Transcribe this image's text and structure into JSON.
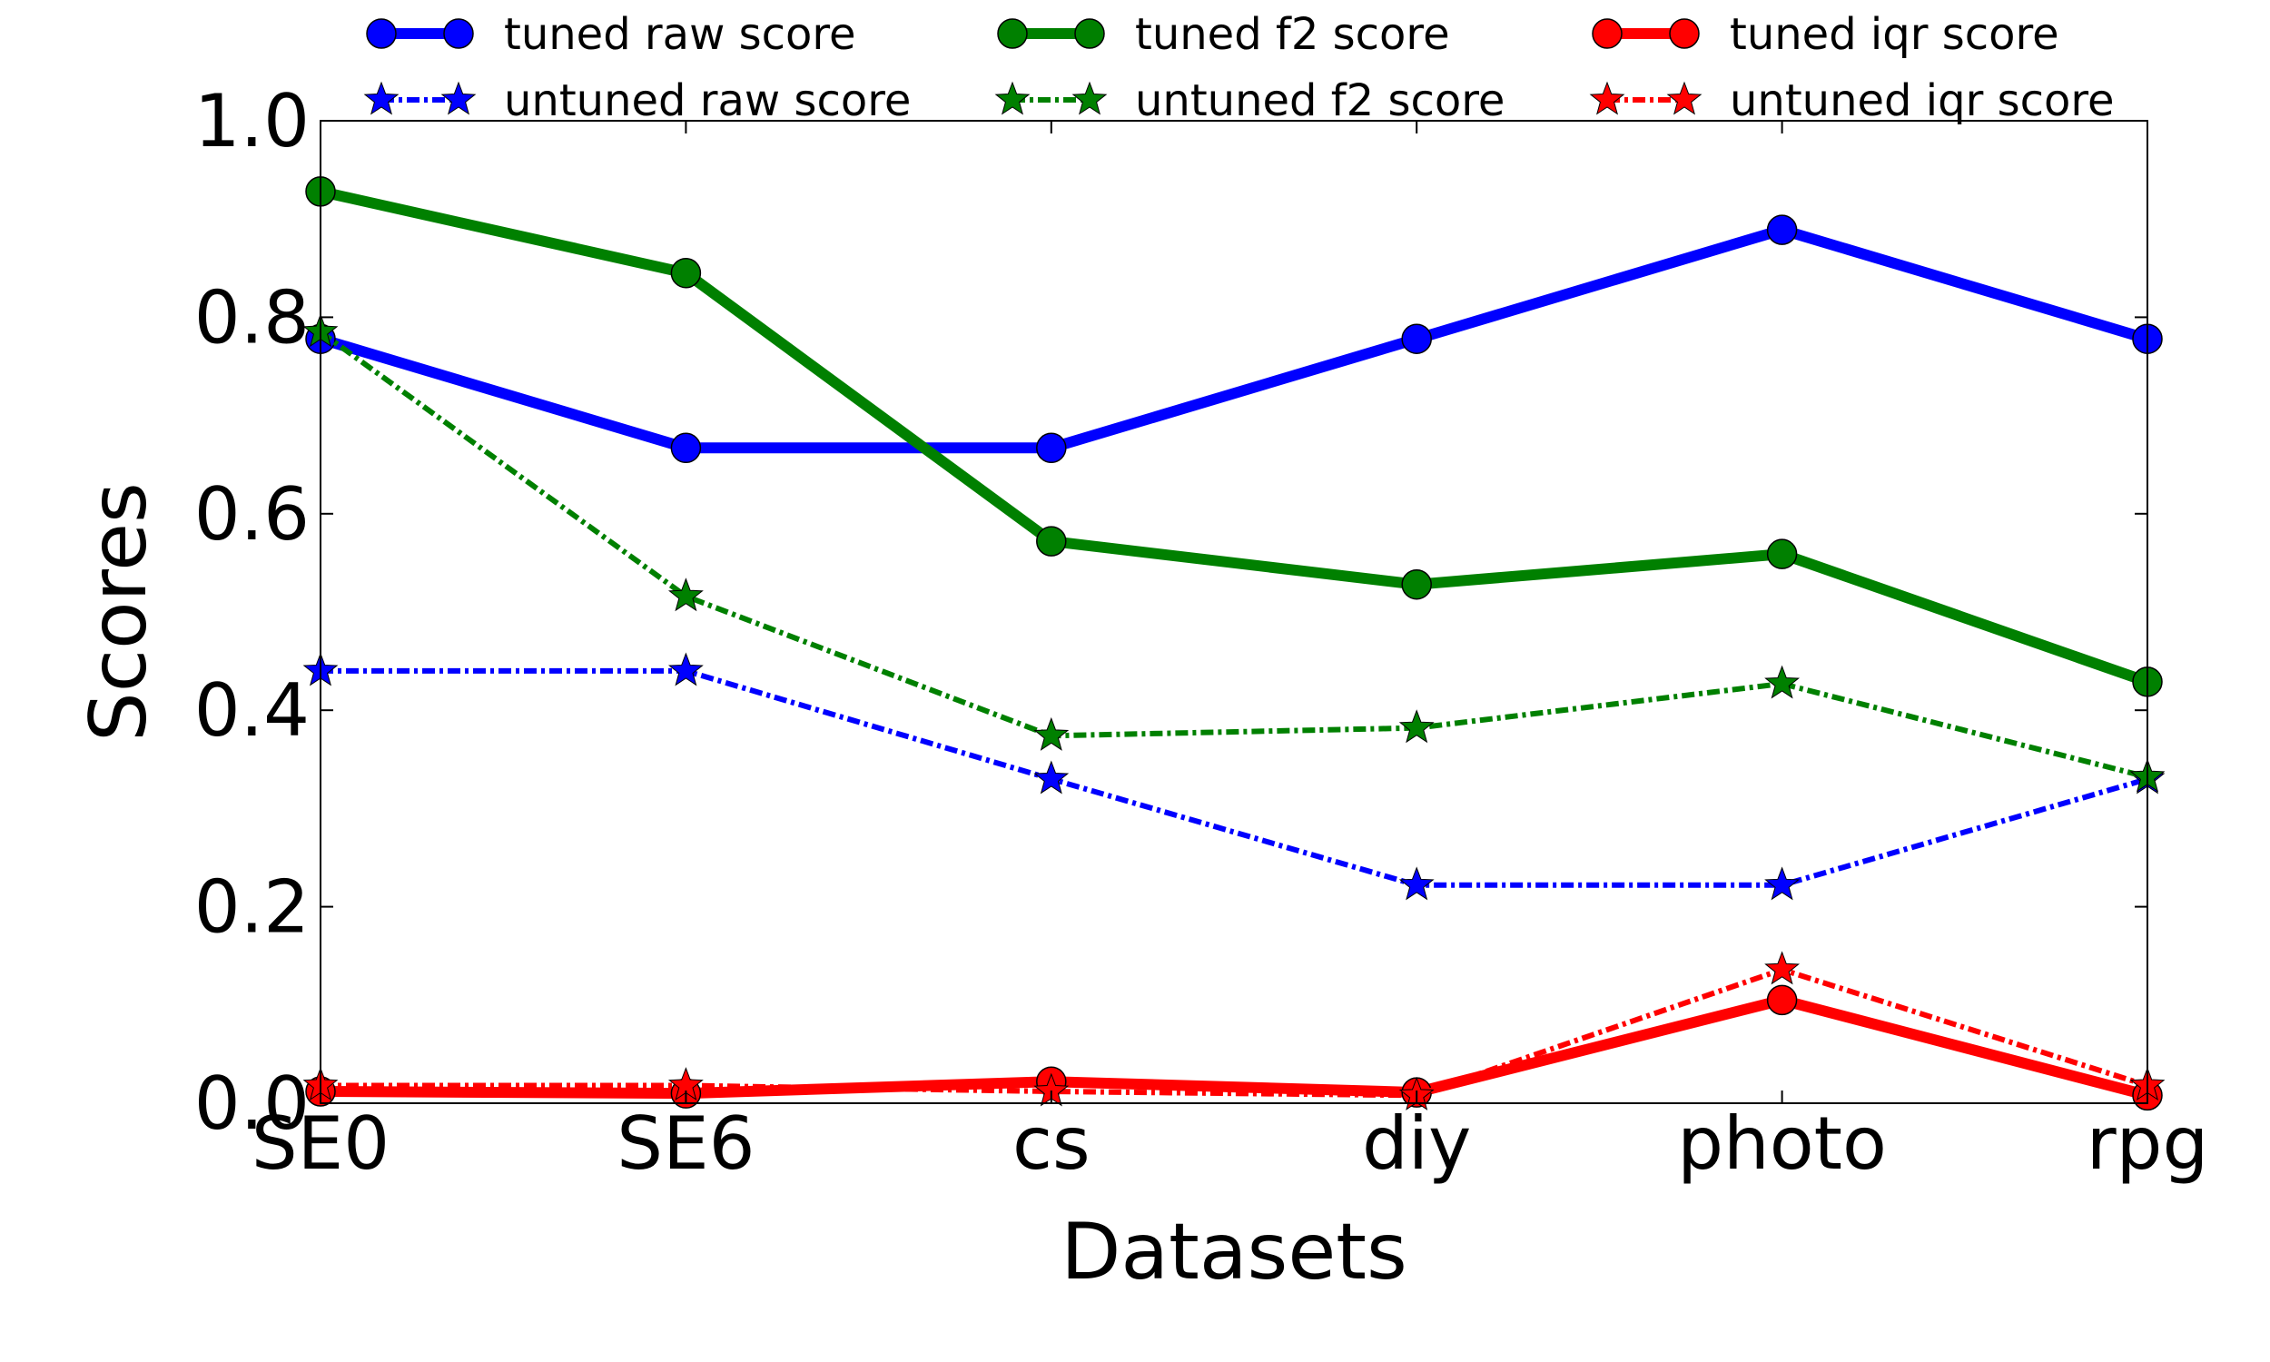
{
  "chart_data": {
    "type": "line",
    "xlabel": "Datasets",
    "ylabel": "Scores",
    "categories": [
      "SE0",
      "SE6",
      "cs",
      "diy",
      "photo",
      "rpg"
    ],
    "ylim": [
      0.0,
      1.0
    ],
    "yticks": [
      "0.0",
      "0.2",
      "0.4",
      "0.6",
      "0.8",
      "1.0"
    ],
    "grid": false,
    "legend_placement": "top, above plot, 3 columns",
    "series": [
      {
        "name": "tuned raw score",
        "color": "#0000ff",
        "style": "solid",
        "marker": "circle",
        "values": [
          0.778,
          0.667,
          0.667,
          0.778,
          0.889,
          0.778
        ]
      },
      {
        "name": "untuned raw score",
        "color": "#0000ff",
        "style": "dashdot",
        "marker": "star",
        "values": [
          0.44,
          0.44,
          0.33,
          0.222,
          0.222,
          0.33
        ]
      },
      {
        "name": "tuned f2 score",
        "color": "#008000",
        "style": "solid",
        "marker": "circle",
        "values": [
          0.928,
          0.845,
          0.572,
          0.528,
          0.559,
          0.429
        ]
      },
      {
        "name": "untuned f2 score",
        "color": "#008000",
        "style": "dashdot",
        "marker": "star",
        "values": [
          0.785,
          0.516,
          0.374,
          0.382,
          0.427,
          0.332
        ]
      },
      {
        "name": "tuned iqr score",
        "color": "#ff0000",
        "style": "solid",
        "marker": "circle",
        "values": [
          0.012,
          0.01,
          0.022,
          0.011,
          0.105,
          0.008
        ]
      },
      {
        "name": "untuned iqr score",
        "color": "#ff0000",
        "style": "dashdot",
        "marker": "star",
        "values": [
          0.018,
          0.018,
          0.012,
          0.008,
          0.136,
          0.018
        ]
      }
    ]
  }
}
